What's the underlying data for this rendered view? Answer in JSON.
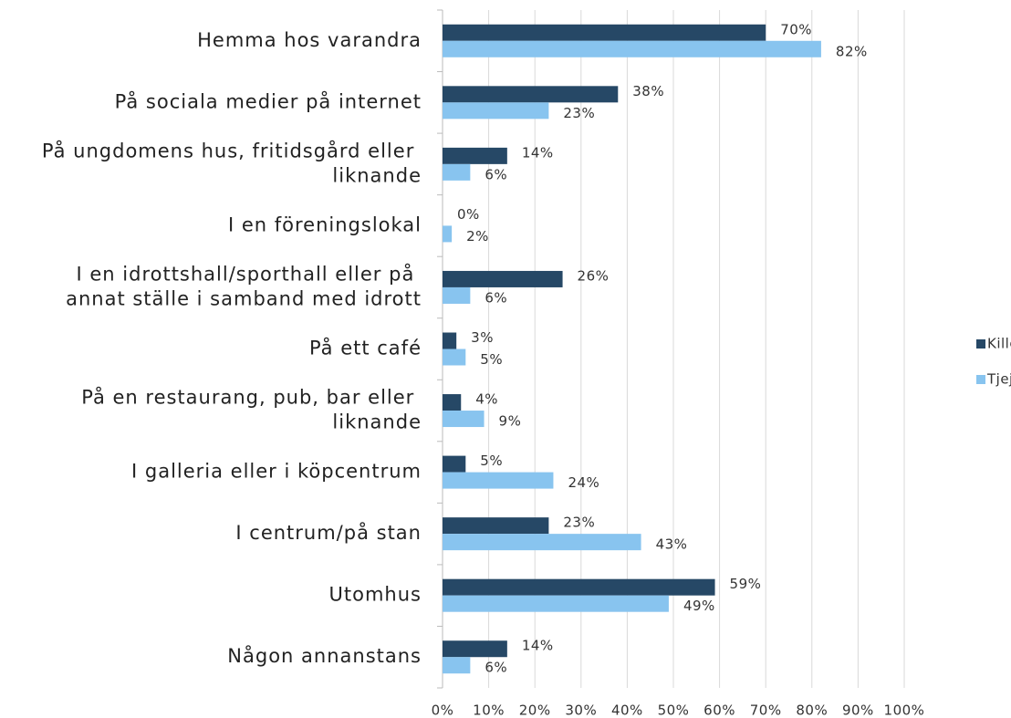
{
  "chart_data": {
    "type": "bar",
    "orientation": "horizontal",
    "categories": [
      "Hemma hos varandra",
      "På sociala medier på internet",
      "På ungdomens hus, fritidsgård eller liknande",
      "I en föreningslokal",
      "I en idrottshall/sporthall eller på annat ställe i samband med idrott",
      "På ett café",
      "På en restaurang, pub, bar eller liknande",
      "I galleria eller i köpcentrum",
      "I centrum/på stan",
      "Utomhus",
      "Någon annanstans"
    ],
    "series": [
      {
        "name": "Kille",
        "color": "#264866",
        "values": [
          70,
          38,
          14,
          0,
          26,
          3,
          4,
          5,
          23,
          59,
          14
        ],
        "value_labels": [
          "70%",
          "38%",
          "14%",
          "0%",
          "26%",
          "3%",
          "4%",
          "5%",
          "23%",
          "59%",
          "14%"
        ]
      },
      {
        "name": "Tjej",
        "color": "#88c4ef",
        "values": [
          82,
          23,
          6,
          2,
          6,
          5,
          9,
          24,
          43,
          49,
          6
        ],
        "value_labels": [
          "82%",
          "23%",
          "6%",
          "2%",
          "6%",
          "5%",
          "9%",
          "24%",
          "43%",
          "49%",
          "6%"
        ]
      }
    ],
    "xlim": [
      0,
      100
    ],
    "xticks": [
      {
        "value": 0,
        "label": "0%"
      },
      {
        "value": 10,
        "label": "10%"
      },
      {
        "value": 20,
        "label": "20%"
      },
      {
        "value": 30,
        "label": "30%"
      },
      {
        "value": 40,
        "label": "40%"
      },
      {
        "value": 50,
        "label": "50%"
      },
      {
        "value": 60,
        "label": "60%"
      },
      {
        "value": 70,
        "label": "70%"
      },
      {
        "value": 80,
        "label": "80%"
      },
      {
        "value": 90,
        "label": "90%"
      },
      {
        "value": 100,
        "label": "100%"
      }
    ],
    "grid": true,
    "legend": "right"
  }
}
